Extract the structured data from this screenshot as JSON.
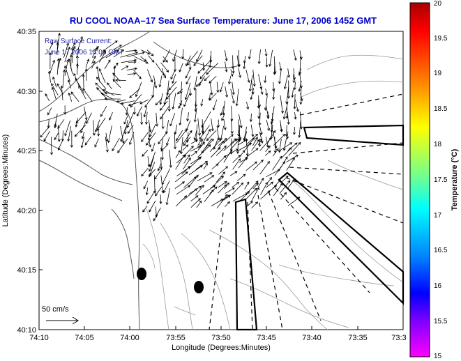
{
  "title": "RU COOL  NOAA–17  Sea Surface Temperature:  June 17, 2006 1452 GMT",
  "legend_line1": "Raw Surface Current:",
  "legend_line2": "June 17 2006 14:00 GMT",
  "scale_label": "50 cm/s",
  "x_axis": {
    "label": "Longitude (Degrees:Minutes)",
    "ticks": [
      "74:10",
      "74:05",
      "74:00",
      "73:55",
      "73:50",
      "73:45",
      "73:40",
      "73:35",
      "73:3"
    ]
  },
  "y_axis": {
    "label": "Latitude (Degrees:Minutes)",
    "ticks": [
      "40:35",
      "40:30",
      "40:25",
      "40:20",
      "40:15",
      "40:10"
    ]
  },
  "colorbar": {
    "label": "Temperature (°C)",
    "ticks": [
      "20",
      "19.5",
      "19",
      "18.5",
      "18",
      "17.5",
      "17",
      "16.5",
      "16",
      "15.5",
      "15"
    ],
    "colors": [
      "#aa0000",
      "#ff0000",
      "#ff7f00",
      "#ffff00",
      "#7fff7f",
      "#00ffff",
      "#007fff",
      "#0000ff",
      "#7f00ff",
      "#ff00ff"
    ]
  }
}
